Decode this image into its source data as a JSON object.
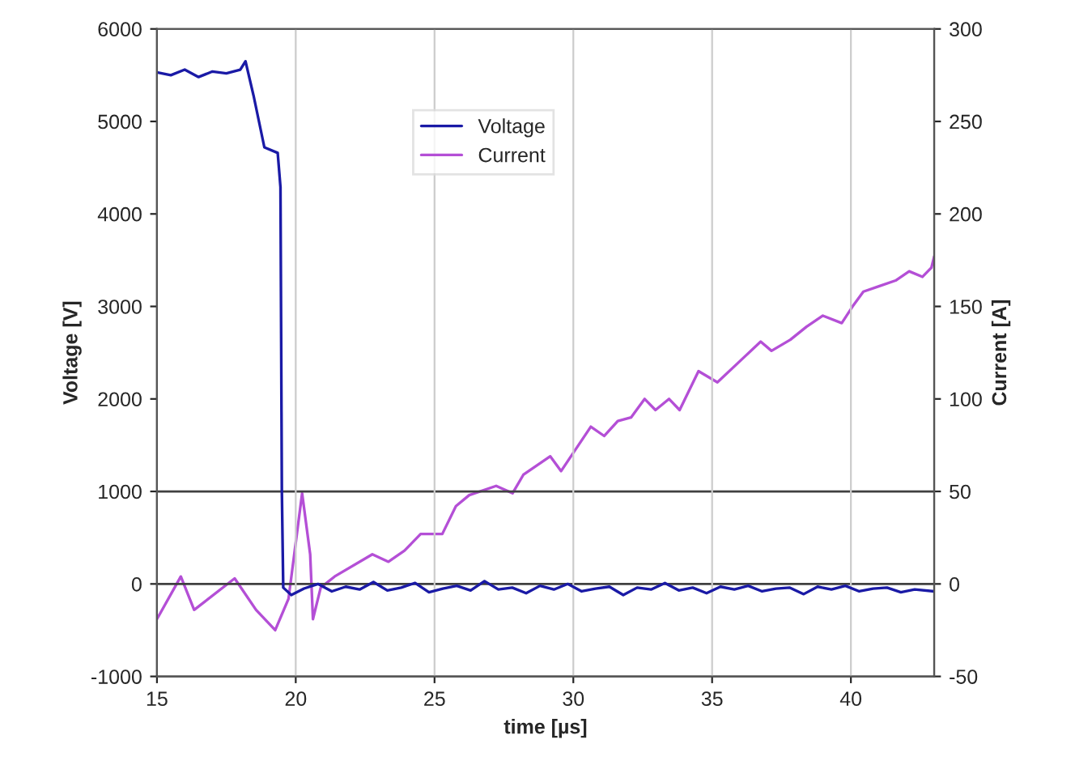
{
  "chart_data": {
    "type": "line",
    "xlabel": "time [µs]",
    "ylabel": "Voltage [V]",
    "y2label": "Current [A]",
    "xlim": [
      15,
      43
    ],
    "xticks": [
      15,
      20,
      25,
      30,
      35,
      40
    ],
    "ylim": [
      -1000,
      6000
    ],
    "yticks": [
      -1000,
      0,
      1000,
      2000,
      3000,
      4000,
      5000,
      6000
    ],
    "y2lim": [
      -50,
      300
    ],
    "y2ticks": [
      -50,
      0,
      50,
      100,
      150,
      200,
      250,
      300
    ],
    "grid": "x",
    "legend": "top",
    "line_style": "solid",
    "ref_lines": [
      {
        "axis": "y",
        "value": 1000,
        "color": "#404040"
      },
      {
        "axis": "y",
        "value": 0,
        "color": "#404040"
      }
    ],
    "series": [
      {
        "name": "Voltage",
        "color": "#1a1aa6",
        "x": [
          15,
          15.5,
          16,
          16.5,
          17,
          17.5,
          18,
          18.19,
          18.48,
          18.87,
          19.35,
          19.45,
          19.5,
          19.55,
          19.84,
          20.3,
          20.8,
          21.3,
          21.8,
          22.3,
          22.8,
          23.3,
          23.8,
          24.3,
          24.8,
          25.3,
          25.8,
          26.3,
          26.8,
          27.3,
          27.8,
          28.3,
          28.8,
          29.3,
          29.8,
          30.3,
          30.8,
          31.3,
          31.8,
          32.3,
          32.8,
          33.3,
          33.8,
          34.3,
          34.8,
          35.3,
          35.8,
          36.3,
          36.8,
          37.3,
          37.8,
          38.3,
          38.8,
          39.3,
          39.8,
          40.3,
          40.8,
          41.3,
          41.8,
          42.3,
          43
        ],
        "values": [
          5530,
          5500,
          5560,
          5480,
          5540,
          5520,
          5560,
          5650,
          5280,
          4720,
          4660,
          4290,
          1000,
          -40,
          -120,
          -50,
          0,
          -80,
          -30,
          -60,
          20,
          -70,
          -40,
          10,
          -90,
          -50,
          -20,
          -70,
          30,
          -60,
          -40,
          -100,
          -20,
          -60,
          0,
          -80,
          -50,
          -30,
          -120,
          -40,
          -60,
          10,
          -70,
          -40,
          -100,
          -30,
          -60,
          -20,
          -80,
          -50,
          -40,
          -110,
          -30,
          -60,
          -20,
          -80,
          -50,
          -40,
          -90,
          -60,
          -80
        ]
      },
      {
        "name": "Current",
        "color": "#b44fd6",
        "axis": "y2",
        "x": [
          15,
          15.86,
          16.34,
          17.8,
          18.57,
          19.26,
          19.74,
          20.23,
          20.52,
          20.62,
          20.9,
          21.4,
          22.76,
          23.34,
          23.92,
          24.5,
          25.28,
          25.77,
          26.25,
          27.22,
          27.81,
          28.2,
          29.17,
          29.56,
          30.63,
          31.11,
          31.6,
          32.08,
          32.57,
          32.96,
          33.45,
          33.83,
          34.51,
          35.19,
          35.97,
          36.75,
          37.14,
          37.82,
          38.4,
          38.99,
          39.67,
          40.06,
          40.45,
          41.03,
          41.61,
          42.1,
          42.58,
          42.9,
          43
        ],
        "values": [
          -19,
          4,
          -14,
          3,
          -14,
          -25,
          -8,
          49,
          16,
          -19,
          -2,
          4,
          16,
          12,
          18,
          27,
          27,
          42,
          48,
          53,
          49,
          59,
          69,
          61,
          85,
          80,
          88,
          90,
          100,
          94,
          100,
          94,
          115,
          109,
          120,
          131,
          126,
          132,
          139,
          145,
          141,
          150,
          158,
          161,
          164,
          169,
          166,
          171,
          177
        ]
      }
    ]
  }
}
